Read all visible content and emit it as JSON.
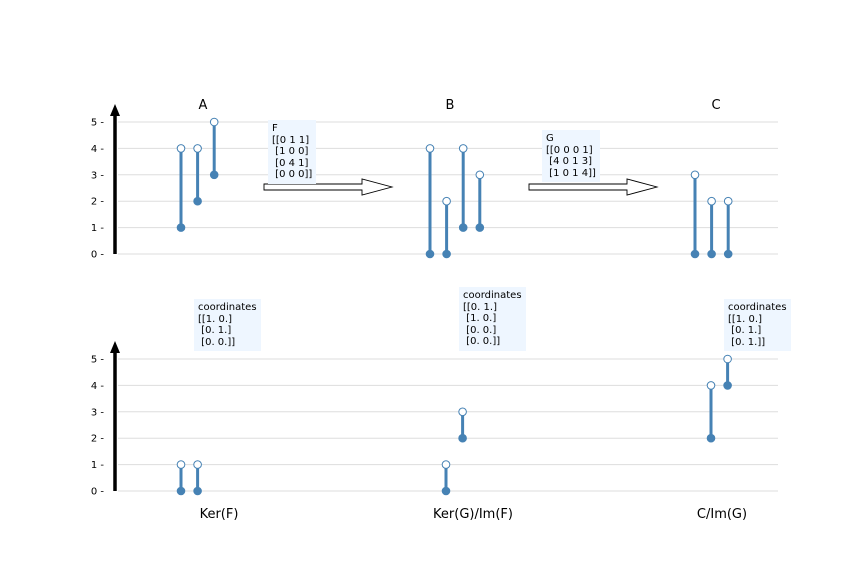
{
  "chart_data": {
    "type": "barcode",
    "panels": [
      {
        "row": "top",
        "title": "A",
        "yticks": [
          0,
          1,
          2,
          3,
          4,
          5
        ],
        "bars": [
          [
            1,
            4
          ],
          [
            2,
            4
          ],
          [
            3,
            5
          ]
        ]
      },
      {
        "row": "top",
        "title": "B",
        "yticks": [
          0,
          1,
          2,
          3,
          4,
          5
        ],
        "bars": [
          [
            0,
            4
          ],
          [
            0,
            2
          ],
          [
            1,
            4
          ],
          [
            1,
            3
          ]
        ]
      },
      {
        "row": "top",
        "title": "C",
        "yticks": [
          0,
          1,
          2,
          3,
          4,
          5
        ],
        "bars": [
          [
            0,
            3
          ],
          [
            0,
            2
          ],
          [
            0,
            2
          ]
        ]
      },
      {
        "row": "bottom",
        "xlabel": "Ker(F)",
        "yticks": [
          0,
          1,
          2,
          3,
          4,
          5
        ],
        "bars": [
          [
            0,
            1
          ],
          [
            0,
            1
          ]
        ],
        "annotation": "coordinates\n[[1. 0.]\n [0. 1.]\n [0. 0.]]"
      },
      {
        "row": "bottom",
        "xlabel": "Ker(G)/Im(F)",
        "yticks": [
          0,
          1,
          2,
          3,
          4,
          5
        ],
        "bars": [
          [
            0,
            1
          ],
          [
            2,
            3
          ]
        ],
        "annotation": "coordinates\n[[0. 1.]\n [1. 0.]\n [0. 0.]\n [0. 0.]]"
      },
      {
        "row": "bottom",
        "xlabel": "C/Im(G)",
        "yticks": [
          0,
          1,
          2,
          3,
          4,
          5
        ],
        "bars": [
          [
            2,
            4
          ],
          [
            4,
            5
          ]
        ],
        "annotation": "coordinates\n[[1. 0.]\n [0. 1.]\n [0. 1.]]"
      }
    ],
    "maps": [
      {
        "label": "F\n[[0 1 1]\n [1 0 0]\n [0 4 1]\n [0 0 0]]"
      },
      {
        "label": "G\n[[0 0 0 1]\n [4 0 1 3]\n [1 0 1 4]]"
      }
    ],
    "colors": {
      "bar": "#4682b4",
      "grid": "#dddddd",
      "axis": "#000000",
      "annotation_bg": "#eef6ff"
    }
  }
}
